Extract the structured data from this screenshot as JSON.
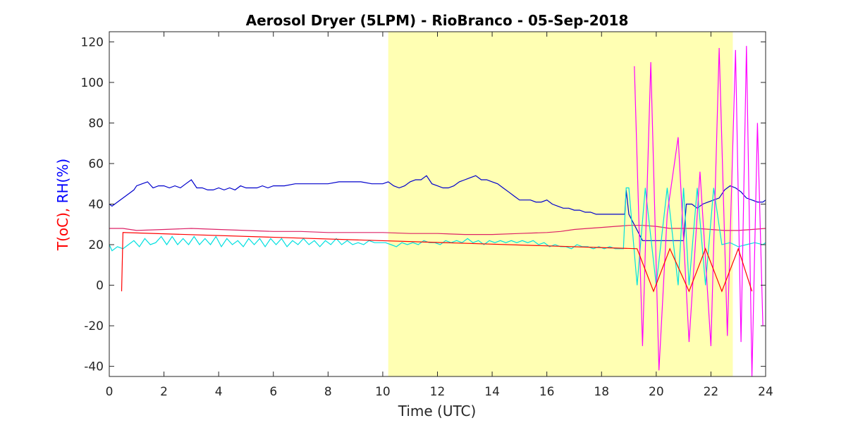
{
  "chart_data": {
    "type": "line",
    "title": "Aerosol Dryer (5LPM) - RioBranco - 05-Sep-2018",
    "xlabel": "Time (UTC)",
    "ylabel_parts": [
      {
        "text": "T(oC),",
        "color": "#ff0000"
      },
      {
        "text": " RH(%)",
        "color": "#0000ff"
      }
    ],
    "xlim": [
      0,
      24
    ],
    "ylim": [
      -45,
      125
    ],
    "xticks": [
      0,
      2,
      4,
      6,
      8,
      10,
      12,
      14,
      16,
      18,
      20,
      22,
      24
    ],
    "yticks": [
      -40,
      -20,
      0,
      20,
      40,
      60,
      80,
      100,
      120
    ],
    "grid": false,
    "legend": "none",
    "shaded_region": {
      "x_start": 10.2,
      "x_end": 22.8,
      "color": "#ffffb3"
    },
    "series": [
      {
        "color": "#0000cc",
        "x": [
          0,
          0.1,
          0.3,
          0.5,
          0.7,
          0.9,
          1.0,
          1.2,
          1.4,
          1.6,
          1.8,
          2.0,
          2.2,
          2.4,
          2.6,
          2.8,
          3.0,
          3.2,
          3.4,
          3.6,
          3.8,
          4.0,
          4.2,
          4.4,
          4.6,
          4.8,
          5.0,
          5.2,
          5.4,
          5.6,
          5.8,
          6.0,
          6.4,
          6.8,
          7.2,
          7.6,
          8.0,
          8.4,
          8.8,
          9.2,
          9.6,
          10.0,
          10.2,
          10.4,
          10.6,
          10.8,
          11.0,
          11.2,
          11.4,
          11.6,
          11.8,
          12.0,
          12.2,
          12.4,
          12.6,
          12.8,
          13.0,
          13.2,
          13.4,
          13.6,
          13.8,
          14.0,
          14.2,
          14.4,
          14.6,
          14.8,
          15.0,
          15.2,
          15.4,
          15.6,
          15.8,
          16.0,
          16.2,
          16.4,
          16.6,
          16.8,
          17.0,
          17.2,
          17.4,
          17.6,
          17.8,
          18.0,
          18.2,
          18.4,
          18.6,
          18.85,
          18.9,
          19.0,
          19.5,
          20.0,
          20.5,
          21.0,
          21.1,
          21.3,
          21.5,
          21.7,
          21.9,
          22.1,
          22.3,
          22.5,
          22.7,
          22.9,
          23.1,
          23.3,
          23.5,
          23.7,
          23.9,
          24.0
        ],
        "y": [
          40,
          39,
          41,
          43,
          45,
          47,
          49,
          50,
          51,
          48,
          49,
          49,
          48,
          49,
          48,
          50,
          52,
          48,
          48,
          47,
          47,
          48,
          47,
          48,
          47,
          49,
          48,
          48,
          48,
          49,
          48,
          49,
          49,
          50,
          50,
          50,
          50,
          51,
          51,
          51,
          50,
          50,
          51,
          49,
          48,
          49,
          51,
          52,
          52,
          54,
          50,
          49,
          48,
          48,
          49,
          51,
          52,
          53,
          54,
          52,
          52,
          51,
          50,
          48,
          46,
          44,
          42,
          42,
          42,
          41,
          41,
          42,
          40,
          39,
          38,
          38,
          37,
          37,
          36,
          36,
          35,
          35,
          35,
          35,
          35,
          35,
          47,
          35,
          22,
          22,
          22,
          22,
          40,
          40,
          38,
          40,
          41,
          42,
          43,
          47,
          49,
          48,
          46,
          43,
          42,
          41,
          41,
          42
        ]
      },
      {
        "color": "#dd2266",
        "x": [
          0,
          0.5,
          1,
          2,
          3,
          4,
          5,
          6,
          7,
          8,
          9,
          10,
          11,
          12,
          13,
          14,
          15,
          16,
          16.5,
          17,
          17.5,
          18,
          18.5,
          19,
          19.5,
          20,
          20.5,
          21,
          21.5,
          22,
          22.5,
          23,
          23.5,
          24
        ],
        "y": [
          28,
          28,
          27,
          27.5,
          28,
          27.5,
          27,
          26.5,
          26.5,
          26,
          26,
          26,
          25.5,
          25.5,
          25,
          25,
          25.5,
          26,
          26.5,
          27.5,
          28,
          28.5,
          29,
          29.5,
          29.5,
          29,
          28,
          28,
          28,
          27.5,
          27,
          27,
          27.5,
          28
        ]
      },
      {
        "color": "#00e0e0",
        "x": [
          0,
          0.1,
          0.3,
          0.5,
          0.7,
          0.9,
          1.1,
          1.3,
          1.5,
          1.7,
          1.9,
          2.1,
          2.3,
          2.5,
          2.7,
          2.9,
          3.1,
          3.3,
          3.5,
          3.7,
          3.9,
          4.1,
          4.3,
          4.5,
          4.7,
          4.9,
          5.1,
          5.3,
          5.5,
          5.7,
          5.9,
          6.1,
          6.3,
          6.5,
          6.7,
          6.9,
          7.1,
          7.3,
          7.5,
          7.7,
          7.9,
          8.1,
          8.3,
          8.5,
          8.7,
          8.9,
          9.1,
          9.3,
          9.5,
          9.7,
          9.9,
          10.1,
          10.3,
          10.5,
          10.7,
          10.9,
          11.1,
          11.3,
          11.5,
          11.7,
          11.9,
          12.1,
          12.3,
          12.5,
          12.7,
          12.9,
          13.1,
          13.3,
          13.5,
          13.7,
          13.9,
          14.1,
          14.3,
          14.5,
          14.7,
          14.9,
          15.1,
          15.3,
          15.5,
          15.7,
          15.9,
          16.1,
          16.3,
          16.5,
          16.7,
          16.9,
          17.1,
          17.3,
          17.5,
          17.7,
          17.9,
          18.1,
          18.3,
          18.5,
          18.8,
          18.9,
          19.0,
          19.3,
          19.6,
          20.0,
          20.4,
          20.8,
          21.0,
          21.2,
          21.5,
          21.8,
          22.1,
          22.4,
          22.7,
          23.0,
          23.3,
          23.6,
          23.9,
          24.0
        ],
        "y": [
          20,
          17,
          19,
          18,
          20,
          22,
          19,
          23,
          20,
          21,
          24,
          20,
          24,
          20,
          23,
          20,
          24,
          20,
          23,
          20,
          24,
          19,
          23,
          20,
          22,
          19,
          23,
          20,
          23,
          19,
          23,
          20,
          23,
          19,
          22,
          20,
          23,
          20,
          22,
          19,
          22,
          20,
          23,
          20,
          22,
          20,
          21,
          20,
          22,
          21,
          21,
          21,
          20,
          19,
          21,
          20,
          21,
          20,
          22,
          21,
          21,
          20,
          22,
          21,
          22,
          21,
          23,
          21,
          22,
          20,
          22,
          21,
          22,
          21,
          22,
          21,
          22,
          21,
          22,
          20,
          21,
          19,
          20,
          19,
          19,
          18,
          20,
          19,
          19,
          18,
          19,
          18,
          19,
          18,
          18,
          48,
          48,
          0,
          48,
          0,
          48,
          0,
          48,
          0,
          48,
          0,
          48,
          20,
          21,
          19,
          20,
          21,
          20,
          21
        ]
      },
      {
        "color": "#ff00ff",
        "x": [
          19.2,
          19.5,
          19.8,
          20.1,
          20.4,
          20.8,
          21.2,
          21.6,
          22.0,
          22.3,
          22.6,
          22.9,
          23.1,
          23.3,
          23.5,
          23.7,
          23.9
        ],
        "y": [
          108,
          -30,
          110,
          -42,
          35,
          73,
          -28,
          56,
          -30,
          117,
          -25,
          116,
          -28,
          118,
          -45,
          80,
          -20
        ]
      },
      {
        "color": "#ff0000",
        "x": [
          0.45,
          0.5,
          19.3,
          19.9,
          20.5,
          21.2,
          21.8,
          22.4,
          23.0,
          23.5
        ],
        "y": [
          -3,
          26,
          18,
          -3,
          18,
          -3,
          18,
          -3,
          18,
          -3
        ]
      }
    ]
  }
}
